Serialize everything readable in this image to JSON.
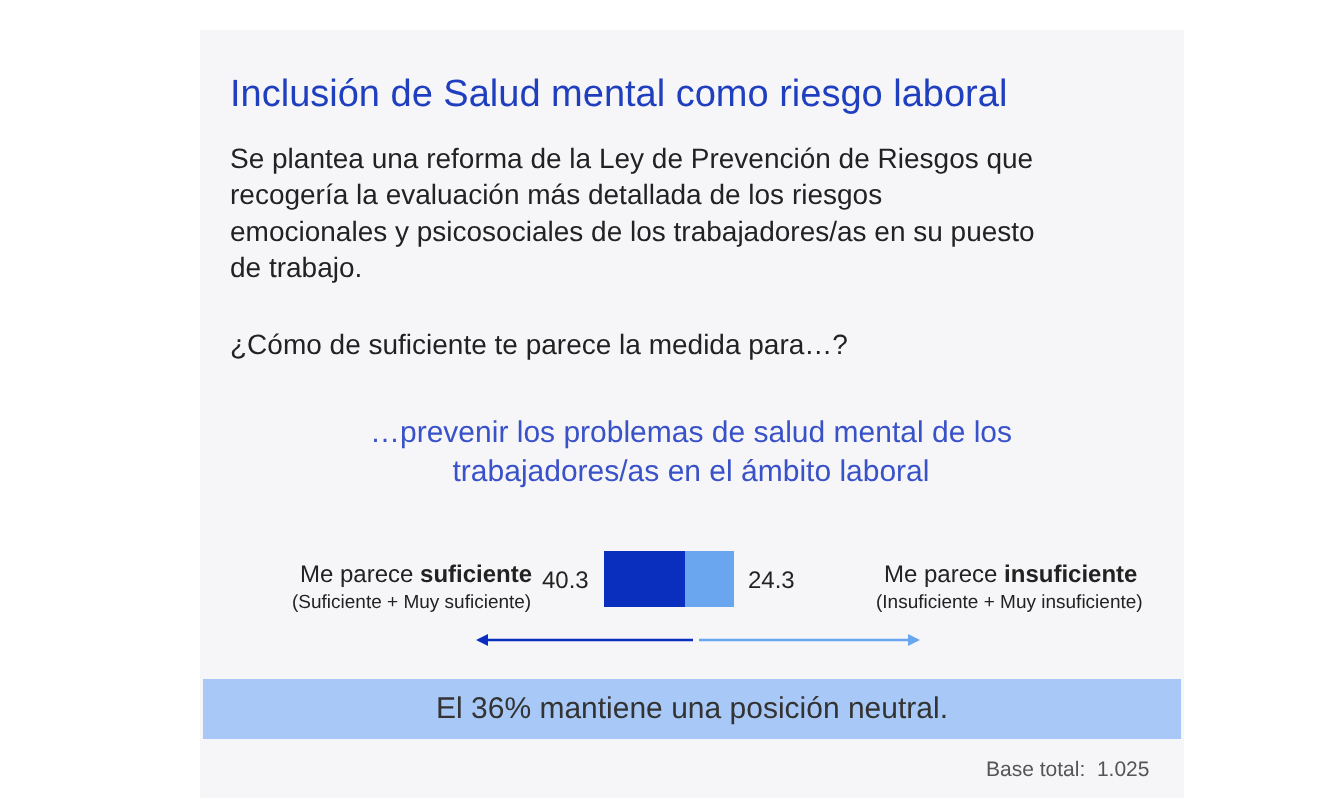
{
  "chart_data": {
    "type": "bar",
    "orientation": "horizontal",
    "stacked": true,
    "data_labels": true,
    "legend": false,
    "title": "Inclusión de Salud mental como riesgo laboral",
    "subtitle": "Se plantea una reforma de la Ley de Prevención de Riesgos que\nrecogería la evaluación más detallada de los riesgos\nemocionales y psicosociales de los trabajadores/as en su puesto\nde trabajo.",
    "xlabel": "…prevenir los problemas de salud mental de los\ntrabajadores/as en el ámbito laboral",
    "categories": [
      null
    ],
    "series": [
      {
        "color": "#0a2fbf",
        "values": [
          40.3
        ]
      },
      {
        "color": "#6aa6f0",
        "values": [
          24.3
        ]
      }
    ],
    "annotations": [
      "¿Cómo de suficiente te parece la medida para…?",
      "Me parece suficiente",
      "(Suficiente + Muy suficiente)",
      "Me parece insuficiente",
      "(Insuficiente + Muy insuficiente)",
      "El 36% mantiene una posición neutral.",
      "Base total:  1.025"
    ]
  }
}
